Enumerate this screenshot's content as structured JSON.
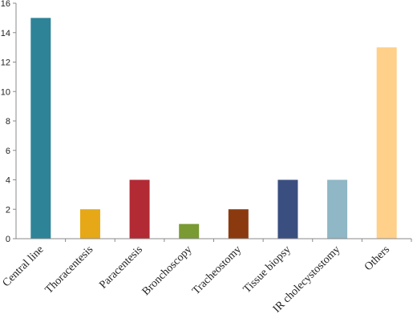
{
  "chart_data": {
    "type": "bar",
    "title": "",
    "xlabel": "",
    "ylabel": "",
    "ylim": [
      0,
      16
    ],
    "yticks": [
      0,
      2,
      4,
      6,
      8,
      10,
      12,
      14,
      16
    ],
    "grid": false,
    "legend": "none",
    "categories": [
      "Central line",
      "Thoracentesis",
      "Paracentesis",
      "Bronchoscopy",
      "Tracheostomy",
      "Tissue biopsy",
      "IR cholecystostomy",
      "Others"
    ],
    "values": [
      15,
      2,
      4,
      1,
      2,
      4,
      4,
      13
    ],
    "colors": [
      "#2e8397",
      "#e6a817",
      "#b22a33",
      "#7a9a33",
      "#8b3a0f",
      "#3a4f80",
      "#8fb7c5",
      "#ffd08a"
    ]
  }
}
